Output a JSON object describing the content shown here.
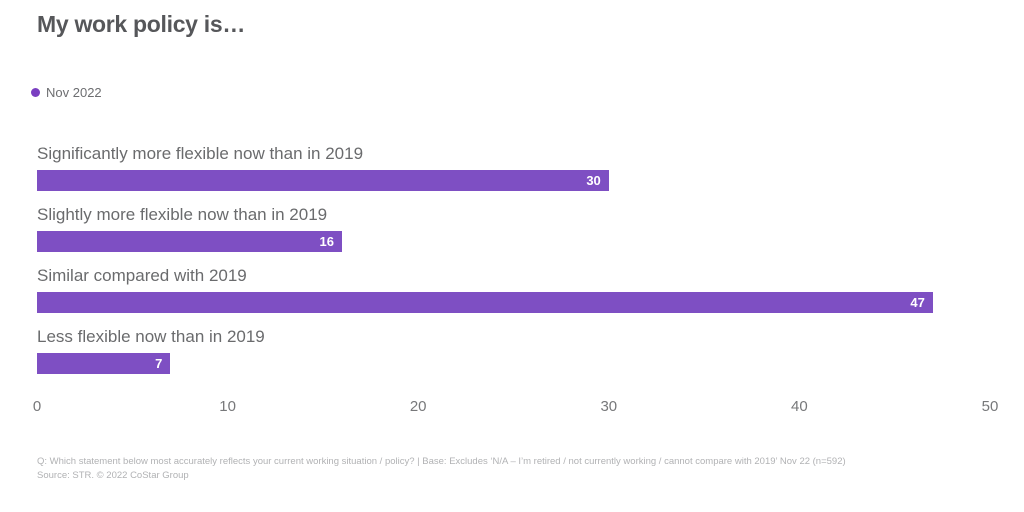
{
  "title": "My work policy is…",
  "legend": {
    "label": "Nov 2022"
  },
  "colors": {
    "bar": "#7e4fc3",
    "legend_dot": "#7a3fc1",
    "title_text": "#56575a",
    "value_label_text": "#ffffff"
  },
  "chart_data": {
    "type": "bar",
    "orientation": "horizontal",
    "title": "My work policy is…",
    "series_name": "Nov 2022",
    "categories": [
      "Significantly more flexible now than in 2019",
      "Slightly more flexible now than in 2019",
      "Similar compared with 2019",
      "Less flexible now than in 2019"
    ],
    "values": [
      30,
      16,
      47,
      7
    ],
    "xlim": [
      0,
      50
    ],
    "xticks": [
      0,
      10,
      20,
      30,
      40,
      50
    ],
    "grid": false,
    "legend_position": "top-left",
    "value_label_style": "inside bar end, white bold"
  },
  "footer": {
    "line1": "Q: Which statement below most accurately reflects your current working situation / policy? | Base: Excludes ‘N/A – I’m retired / not currently working / cannot compare with 2019’ Nov 22 (n=592)",
    "line2": "Source: STR. © 2022 CoStar Group"
  }
}
